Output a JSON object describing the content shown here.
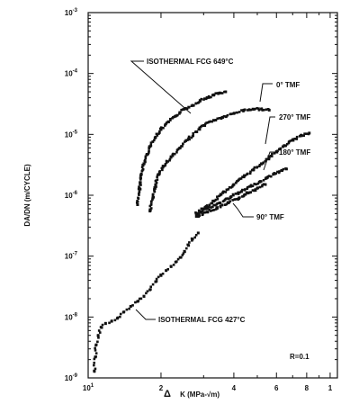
{
  "chart_data": {
    "type": "scatter",
    "xlabel": "K (MPa-√m)",
    "xlabel_delta": "Δ",
    "ylabel": "DA/DN (m/CYCLE)",
    "x_scale": "log",
    "y_scale": "log",
    "xlim": [
      10,
      10.3
    ],
    "ylim": [
      1e-09,
      0.001
    ],
    "x_ticks": [
      {
        "value": 10,
        "label": "10",
        "exp": "1"
      },
      {
        "value": 20,
        "label": "2"
      },
      {
        "value": 40,
        "label": "4"
      },
      {
        "value": 60,
        "label": "6"
      },
      {
        "value": 80,
        "label": "8"
      },
      {
        "value": 100,
        "label": "1"
      }
    ],
    "y_ticks": [
      {
        "value": 0.001,
        "label": "10",
        "exp": "-3"
      },
      {
        "value": 0.0001,
        "label": "10",
        "exp": "-4"
      },
      {
        "value": 1e-05,
        "label": "10",
        "exp": "-5"
      },
      {
        "value": 1e-06,
        "label": "10",
        "exp": "-6"
      },
      {
        "value": 1e-07,
        "label": "10",
        "exp": "-7"
      },
      {
        "value": 1e-08,
        "label": "10",
        "exp": "-8"
      },
      {
        "value": 1e-09,
        "label": "10",
        "exp": "-9"
      }
    ],
    "series": [
      {
        "name": "ISOTHERMAL FCG 649°C",
        "points": [
          [
            16.0,
            7e-07
          ],
          [
            16.3,
            1.3e-06
          ],
          [
            16.6,
            2.2e-06
          ],
          [
            17.0,
            3.3e-06
          ],
          [
            17.5,
            4.7e-06
          ],
          [
            18.0,
            6.3e-06
          ],
          [
            19.0,
            9e-06
          ],
          [
            20.0,
            1.2e-05
          ],
          [
            21.5,
            1.6e-05
          ],
          [
            23.0,
            2e-05
          ],
          [
            25.0,
            2.6e-05
          ],
          [
            27.0,
            3e-05
          ],
          [
            29.0,
            3.6e-05
          ],
          [
            31.0,
            4e-05
          ],
          [
            33.0,
            4.4e-05
          ],
          [
            35.0,
            4.8e-05
          ],
          [
            37.0,
            5e-05
          ]
        ]
      },
      {
        "name": "0° TMF",
        "points": [
          [
            18.0,
            5.5e-07
          ],
          [
            18.5,
            9e-07
          ],
          [
            19.0,
            1.5e-06
          ],
          [
            19.5,
            2.2e-06
          ],
          [
            20.5,
            3e-06
          ],
          [
            22.0,
            4.2e-06
          ],
          [
            24.0,
            6e-06
          ],
          [
            26.0,
            8.5e-06
          ],
          [
            28.0,
            1.1e-05
          ],
          [
            30.0,
            1.4e-05
          ],
          [
            33.0,
            1.7e-05
          ],
          [
            36.0,
            1.9e-05
          ],
          [
            40.0,
            2.2e-05
          ],
          [
            44.0,
            2.5e-05
          ],
          [
            48.0,
            2.6e-05
          ],
          [
            52.0,
            2.6e-05
          ],
          [
            56.0,
            2.5e-05
          ]
        ]
      },
      {
        "name": "270° TMF",
        "points": [
          [
            28.0,
            5e-07
          ],
          [
            30.0,
            6e-07
          ],
          [
            33.0,
            8e-07
          ],
          [
            36.0,
            1.1e-06
          ],
          [
            40.0,
            1.5e-06
          ],
          [
            44.0,
            2e-06
          ],
          [
            48.0,
            2.6e-06
          ],
          [
            52.0,
            3.3e-06
          ],
          [
            56.0,
            4.2e-06
          ],
          [
            60.0,
            5.2e-06
          ],
          [
            65.0,
            6.5e-06
          ],
          [
            70.0,
            8e-06
          ],
          [
            76.0,
            9.5e-06
          ],
          [
            82.0,
            1.05e-05
          ]
        ]
      },
      {
        "name": "180° TMF",
        "points": [
          [
            28.0,
            5e-07
          ],
          [
            31.0,
            6e-07
          ],
          [
            35.0,
            7.5e-07
          ],
          [
            39.0,
            9.5e-07
          ],
          [
            43.0,
            1.15e-06
          ],
          [
            47.0,
            1.4e-06
          ],
          [
            51.0,
            1.65e-06
          ],
          [
            55.0,
            1.95e-06
          ],
          [
            59.0,
            2.25e-06
          ],
          [
            63.0,
            2.55e-06
          ],
          [
            66.0,
            2.7e-06
          ]
        ]
      },
      {
        "name": "90° TMF",
        "points": [
          [
            28.0,
            4.5e-07
          ],
          [
            31.0,
            5.3e-07
          ],
          [
            34.0,
            6.2e-07
          ],
          [
            38.0,
            7.5e-07
          ],
          [
            42.0,
            9e-07
          ],
          [
            46.0,
            1.1e-06
          ],
          [
            50.0,
            1.3e-06
          ],
          [
            54.0,
            1.5e-06
          ]
        ]
      },
      {
        "name": "ISOTHERMAL FCG 427°C",
        "points": [
          [
            10.6,
            1.3e-09
          ],
          [
            10.7,
            2.2e-09
          ],
          [
            10.8,
            3.5e-09
          ],
          [
            11.0,
            5e-09
          ],
          [
            11.3,
            6.8e-09
          ],
          [
            11.8,
            7.8e-09
          ],
          [
            12.5,
            8.5e-09
          ],
          [
            13.2,
            9.5e-09
          ],
          [
            14.0,
            1.2e-08
          ],
          [
            15.0,
            1.5e-08
          ],
          [
            16.0,
            1.8e-08
          ],
          [
            17.0,
            2.2e-08
          ],
          [
            18.0,
            2.8e-08
          ],
          [
            19.0,
            3.8e-08
          ],
          [
            20.0,
            4.8e-08
          ],
          [
            21.0,
            5.8e-08
          ],
          [
            22.0,
            6.8e-08
          ],
          [
            23.0,
            8e-08
          ],
          [
            24.0,
            9.5e-08
          ],
          [
            25.0,
            1.2e-07
          ],
          [
            26.0,
            1.5e-07
          ],
          [
            27.0,
            1.9e-07
          ],
          [
            28.5,
            2.4e-07
          ]
        ]
      }
    ],
    "annotations": {
      "iso649": "ISOTHERMAL FCG 649°C",
      "tmf0": "0° TMF",
      "tmf270": "270° TMF",
      "tmf180": "180° TMF",
      "tmf90": "90° TMF",
      "iso427": "ISOTHERMAL FCG 427°C",
      "ratio": "R=0.1"
    },
    "grid": false,
    "legend": "none"
  }
}
